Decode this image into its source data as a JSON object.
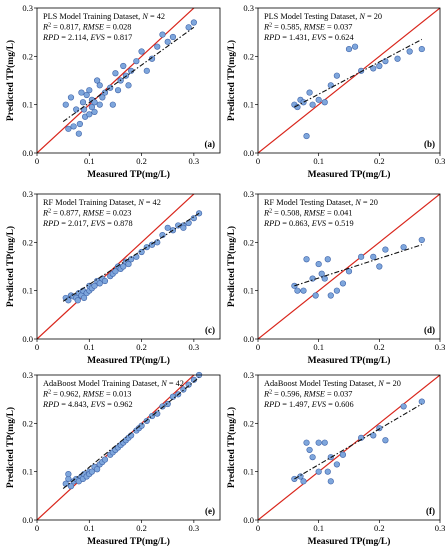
{
  "chart_data": [
    {
      "type": "scatter",
      "panel_label": "(a)",
      "annotation": [
        "PLS Model Training Dataset, N = 42",
        "R2 = 0.817, RMSE = 0.028",
        "RPD = 2.114, EVS = 0.817"
      ],
      "xlabel": "Measured TP(mg/L)",
      "ylabel": "Predicted TP(mg/L)",
      "xlim": [
        0,
        0.35
      ],
      "ylim": [
        0,
        0.3
      ],
      "xticks": [
        "0",
        "0.1",
        "0.2",
        "0.3"
      ],
      "yticks": [
        "0.0",
        "0.1",
        "0.2",
        "0.3"
      ],
      "fit_line": [
        [
          0.05,
          0.065
        ],
        [
          0.3,
          0.26
        ]
      ],
      "points": [
        [
          0.055,
          0.1
        ],
        [
          0.06,
          0.05
        ],
        [
          0.065,
          0.115
        ],
        [
          0.07,
          0.055
        ],
        [
          0.075,
          0.09
        ],
        [
          0.08,
          0.04
        ],
        [
          0.082,
          0.06
        ],
        [
          0.085,
          0.125
        ],
        [
          0.088,
          0.105
        ],
        [
          0.09,
          0.09
        ],
        [
          0.092,
          0.075
        ],
        [
          0.095,
          0.12
        ],
        [
          0.1,
          0.13
        ],
        [
          0.1,
          0.08
        ],
        [
          0.105,
          0.095
        ],
        [
          0.105,
          0.11
        ],
        [
          0.11,
          0.105
        ],
        [
          0.11,
          0.085
        ],
        [
          0.115,
          0.15
        ],
        [
          0.12,
          0.14
        ],
        [
          0.12,
          0.1
        ],
        [
          0.125,
          0.115
        ],
        [
          0.13,
          0.125
        ],
        [
          0.14,
          0.135
        ],
        [
          0.145,
          0.1
        ],
        [
          0.15,
          0.165
        ],
        [
          0.155,
          0.13
        ],
        [
          0.16,
          0.15
        ],
        [
          0.165,
          0.18
        ],
        [
          0.17,
          0.16
        ],
        [
          0.175,
          0.14
        ],
        [
          0.18,
          0.17
        ],
        [
          0.19,
          0.19
        ],
        [
          0.2,
          0.21
        ],
        [
          0.21,
          0.17
        ],
        [
          0.22,
          0.195
        ],
        [
          0.23,
          0.22
        ],
        [
          0.24,
          0.245
        ],
        [
          0.25,
          0.23
        ],
        [
          0.26,
          0.24
        ],
        [
          0.29,
          0.26
        ],
        [
          0.3,
          0.27
        ]
      ]
    },
    {
      "type": "scatter",
      "panel_label": "(b)",
      "annotation": [
        "PLS Model Testing Dataset, N = 20",
        "R2 = 0.585, RMSE = 0.037",
        "RPD = 1.431, EVS = 0.624"
      ],
      "xlabel": "Measured TP(mg/L)",
      "ylabel": "Predicted TP(mg/L)",
      "xlim": [
        0,
        0.3
      ],
      "ylim": [
        0,
        0.3
      ],
      "xticks": [
        "0",
        "0.1",
        "0.2",
        "0.3"
      ],
      "yticks": [
        "0.0",
        "0.1",
        "0.2",
        "0.3"
      ],
      "fit_line": [
        [
          0.06,
          0.095
        ],
        [
          0.27,
          0.235
        ]
      ],
      "points": [
        [
          0.06,
          0.1
        ],
        [
          0.065,
          0.095
        ],
        [
          0.07,
          0.11
        ],
        [
          0.075,
          0.105
        ],
        [
          0.08,
          0.035
        ],
        [
          0.085,
          0.125
        ],
        [
          0.09,
          0.1
        ],
        [
          0.1,
          0.11
        ],
        [
          0.11,
          0.105
        ],
        [
          0.12,
          0.14
        ],
        [
          0.13,
          0.16
        ],
        [
          0.15,
          0.215
        ],
        [
          0.16,
          0.22
        ],
        [
          0.17,
          0.17
        ],
        [
          0.19,
          0.175
        ],
        [
          0.2,
          0.18
        ],
        [
          0.21,
          0.19
        ],
        [
          0.23,
          0.195
        ],
        [
          0.25,
          0.21
        ],
        [
          0.27,
          0.215
        ]
      ]
    },
    {
      "type": "scatter",
      "panel_label": "(c)",
      "annotation": [
        "RF Model Training Dataset, N = 42",
        "R2 = 0.877, RMSE = 0.023",
        "RPD = 2.017, EVS = 0.878"
      ],
      "xlabel": "Measured TP(mg/L)",
      "ylabel": "Predicted TP(mg/L)",
      "xlim": [
        0,
        0.35
      ],
      "ylim": [
        0,
        0.3
      ],
      "xticks": [
        "0",
        "0.1",
        "0.2",
        "0.3"
      ],
      "yticks": [
        "0.0",
        "0.1",
        "0.2",
        "0.3"
      ],
      "fit_line": [
        [
          0.05,
          0.078
        ],
        [
          0.31,
          0.26
        ]
      ],
      "points": [
        [
          0.055,
          0.085
        ],
        [
          0.06,
          0.08
        ],
        [
          0.065,
          0.09
        ],
        [
          0.07,
          0.088
        ],
        [
          0.075,
          0.085
        ],
        [
          0.078,
          0.08
        ],
        [
          0.08,
          0.095
        ],
        [
          0.085,
          0.09
        ],
        [
          0.088,
          0.1
        ],
        [
          0.09,
          0.085
        ],
        [
          0.095,
          0.095
        ],
        [
          0.1,
          0.1
        ],
        [
          0.1,
          0.11
        ],
        [
          0.105,
          0.105
        ],
        [
          0.11,
          0.11
        ],
        [
          0.115,
          0.12
        ],
        [
          0.12,
          0.115
        ],
        [
          0.125,
          0.125
        ],
        [
          0.13,
          0.12
        ],
        [
          0.14,
          0.13
        ],
        [
          0.145,
          0.135
        ],
        [
          0.15,
          0.14
        ],
        [
          0.155,
          0.15
        ],
        [
          0.16,
          0.145
        ],
        [
          0.165,
          0.15
        ],
        [
          0.17,
          0.16
        ],
        [
          0.175,
          0.155
        ],
        [
          0.18,
          0.165
        ],
        [
          0.19,
          0.17
        ],
        [
          0.2,
          0.18
        ],
        [
          0.21,
          0.19
        ],
        [
          0.22,
          0.195
        ],
        [
          0.23,
          0.2
        ],
        [
          0.24,
          0.215
        ],
        [
          0.25,
          0.23
        ],
        [
          0.26,
          0.225
        ],
        [
          0.27,
          0.235
        ],
        [
          0.28,
          0.235
        ],
        [
          0.29,
          0.24
        ],
        [
          0.3,
          0.25
        ],
        [
          0.31,
          0.26
        ],
        [
          0.28,
          0.23
        ]
      ]
    },
    {
      "type": "scatter",
      "panel_label": "(d)",
      "annotation": [
        "RF Model Testing Dataset, N = 20",
        "R2 = 0.508, RMSE = 0.041",
        "RPD = 0.863, EVS = 0.519"
      ],
      "xlabel": "Measured TP(mg/L)",
      "ylabel": "Predicted TP(mg/L)",
      "xlim": [
        0,
        0.3
      ],
      "ylim": [
        0,
        0.3
      ],
      "xticks": [
        "0",
        "0.1",
        "0.2",
        "0.3"
      ],
      "yticks": [
        "0.0",
        "0.1",
        "0.2",
        "0.3"
      ],
      "fit_line": [
        [
          0.06,
          0.11
        ],
        [
          0.27,
          0.195
        ]
      ],
      "points": [
        [
          0.06,
          0.11
        ],
        [
          0.065,
          0.1
        ],
        [
          0.075,
          0.1
        ],
        [
          0.08,
          0.165
        ],
        [
          0.09,
          0.125
        ],
        [
          0.095,
          0.09
        ],
        [
          0.1,
          0.155
        ],
        [
          0.105,
          0.135
        ],
        [
          0.11,
          0.125
        ],
        [
          0.115,
          0.165
        ],
        [
          0.12,
          0.09
        ],
        [
          0.13,
          0.1
        ],
        [
          0.14,
          0.115
        ],
        [
          0.15,
          0.14
        ],
        [
          0.17,
          0.17
        ],
        [
          0.19,
          0.17
        ],
        [
          0.2,
          0.15
        ],
        [
          0.21,
          0.185
        ],
        [
          0.24,
          0.19
        ],
        [
          0.27,
          0.205
        ]
      ]
    },
    {
      "type": "scatter",
      "panel_label": "(e)",
      "annotation": [
        "AdaBoost Model Training Dataset, N = 42",
        "R2 = 0.962, RMSE = 0.013",
        "RPD = 4.843, EVS = 0.962"
      ],
      "xlabel": "Measured TP(mg/L)",
      "ylabel": "Predicted TP(mg/L)",
      "xlim": [
        0,
        0.35
      ],
      "ylim": [
        0,
        0.3
      ],
      "xticks": [
        "0",
        "0.1",
        "0.2",
        "0.3"
      ],
      "yticks": [
        "0.0",
        "0.1",
        "0.2",
        "0.3"
      ],
      "fit_line": [
        [
          0.05,
          0.065
        ],
        [
          0.31,
          0.295
        ]
      ],
      "points": [
        [
          0.055,
          0.075
        ],
        [
          0.06,
          0.085
        ],
        [
          0.06,
          0.095
        ],
        [
          0.065,
          0.07
        ],
        [
          0.07,
          0.08
        ],
        [
          0.075,
          0.085
        ],
        [
          0.08,
          0.08
        ],
        [
          0.085,
          0.09
        ],
        [
          0.088,
          0.085
        ],
        [
          0.09,
          0.095
        ],
        [
          0.095,
          0.09
        ],
        [
          0.1,
          0.1
        ],
        [
          0.1,
          0.095
        ],
        [
          0.105,
          0.1
        ],
        [
          0.11,
          0.11
        ],
        [
          0.115,
          0.105
        ],
        [
          0.12,
          0.115
        ],
        [
          0.125,
          0.12
        ],
        [
          0.13,
          0.125
        ],
        [
          0.14,
          0.135
        ],
        [
          0.145,
          0.14
        ],
        [
          0.15,
          0.145
        ],
        [
          0.155,
          0.15
        ],
        [
          0.16,
          0.155
        ],
        [
          0.165,
          0.16
        ],
        [
          0.17,
          0.165
        ],
        [
          0.175,
          0.17
        ],
        [
          0.18,
          0.175
        ],
        [
          0.19,
          0.185
        ],
        [
          0.195,
          0.19
        ],
        [
          0.2,
          0.195
        ],
        [
          0.21,
          0.205
        ],
        [
          0.22,
          0.215
        ],
        [
          0.23,
          0.22
        ],
        [
          0.24,
          0.235
        ],
        [
          0.25,
          0.24
        ],
        [
          0.26,
          0.255
        ],
        [
          0.27,
          0.26
        ],
        [
          0.28,
          0.27
        ],
        [
          0.29,
          0.28
        ],
        [
          0.3,
          0.29
        ],
        [
          0.31,
          0.3
        ]
      ]
    },
    {
      "type": "scatter",
      "panel_label": "(f)",
      "annotation": [
        "AdaBoost Model Testing Dataset, N = 20",
        "R2 = 0.596, RMSE = 0.037",
        "RPD = 1.497, EVS = 0.606"
      ],
      "xlabel": "Measured TP(mg/L)",
      "ylabel": "Predicted TP(mg/L)",
      "xlim": [
        0,
        0.3
      ],
      "ylim": [
        0,
        0.3
      ],
      "xticks": [
        "0",
        "0.1",
        "0.2",
        "0.3"
      ],
      "yticks": [
        "0.0",
        "0.1",
        "0.2",
        "0.3"
      ],
      "fit_line": [
        [
          0.06,
          0.085
        ],
        [
          0.27,
          0.24
        ]
      ],
      "points": [
        [
          0.06,
          0.085
        ],
        [
          0.07,
          0.09
        ],
        [
          0.075,
          0.08
        ],
        [
          0.08,
          0.16
        ],
        [
          0.085,
          0.145
        ],
        [
          0.09,
          0.13
        ],
        [
          0.1,
          0.16
        ],
        [
          0.1,
          0.1
        ],
        [
          0.11,
          0.16
        ],
        [
          0.115,
          0.1
        ],
        [
          0.12,
          0.13
        ],
        [
          0.12,
          0.08
        ],
        [
          0.13,
          0.115
        ],
        [
          0.14,
          0.135
        ],
        [
          0.17,
          0.17
        ],
        [
          0.19,
          0.175
        ],
        [
          0.2,
          0.19
        ],
        [
          0.21,
          0.165
        ],
        [
          0.24,
          0.235
        ],
        [
          0.27,
          0.245
        ]
      ]
    }
  ],
  "colors": {
    "point_fill": "#7ea6dc",
    "point_stroke": "#3f63a8",
    "identity_line": "#d9261c",
    "fit_line": "#111111",
    "frame": "#000000"
  }
}
